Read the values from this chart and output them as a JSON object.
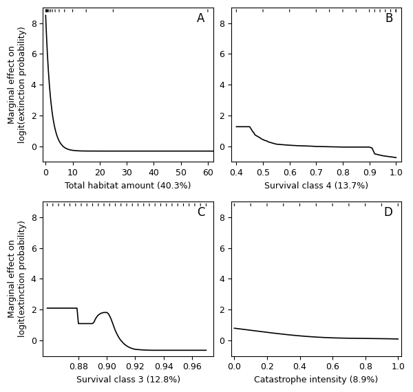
{
  "panel_A": {
    "label": "A",
    "xlabel": "Total habitat amount (40.3%)",
    "xlim": [
      -1,
      62
    ],
    "ylim": [
      -1,
      9
    ],
    "xticks": [
      0,
      10,
      20,
      30,
      40,
      50,
      60
    ],
    "yticks": [
      0,
      2,
      4,
      6,
      8
    ],
    "rug_x": [
      0.05,
      0.15,
      0.3,
      0.5,
      0.8,
      1.2,
      1.8,
      2.5,
      3.5,
      5.0,
      7.0,
      10.0,
      15.0,
      25.0,
      60.0
    ]
  },
  "panel_B": {
    "label": "B",
    "xlabel": "Survival class 4 (13.7%)",
    "xlim": [
      0.38,
      1.02
    ],
    "ylim": [
      -1,
      9
    ],
    "xticks": [
      0.4,
      0.5,
      0.6,
      0.7,
      0.8,
      0.9,
      1.0
    ],
    "yticks": [
      0,
      2,
      4,
      6,
      8
    ],
    "rug_x": [
      0.4,
      0.5,
      0.6,
      0.7,
      0.75,
      0.8,
      0.85,
      0.9,
      0.92,
      0.94,
      0.96,
      0.98,
      1.0,
      1.0,
      1.0
    ]
  },
  "panel_C": {
    "label": "C",
    "xlabel": "Survival class 3 (12.8%)",
    "xlim": [
      0.855,
      0.975
    ],
    "ylim": [
      -1,
      9
    ],
    "xticks": [
      0.88,
      0.9,
      0.92,
      0.94,
      0.96
    ],
    "yticks": [
      0,
      2,
      4,
      6,
      8
    ],
    "rug_x": [
      0.858,
      0.862,
      0.866,
      0.87,
      0.874,
      0.878,
      0.882,
      0.886,
      0.89,
      0.894,
      0.898,
      0.902,
      0.906,
      0.91,
      0.914,
      0.918,
      0.922,
      0.926,
      0.93,
      0.934,
      0.938,
      0.942,
      0.946,
      0.95,
      0.954,
      0.958,
      0.962,
      0.966,
      0.97
    ]
  },
  "panel_D": {
    "label": "D",
    "xlabel": "Catastrophe intensity (8.9%)",
    "xlim": [
      -0.02,
      1.02
    ],
    "ylim": [
      -1,
      9
    ],
    "xticks": [
      0.0,
      0.2,
      0.4,
      0.6,
      0.8,
      1.0
    ],
    "yticks": [
      0,
      2,
      4,
      6,
      8
    ],
    "rug_x": [
      0.0,
      0.1,
      0.2,
      0.3,
      0.4,
      0.5,
      0.6,
      0.7,
      0.8,
      0.9,
      1.0
    ]
  },
  "ylabel": "Marginal effect on\nlogit(extinction probability)",
  "line_color": "#000000",
  "bg_color": "#ffffff",
  "fontsize_label": 9,
  "fontsize_tick": 9,
  "fontsize_panel": 12
}
